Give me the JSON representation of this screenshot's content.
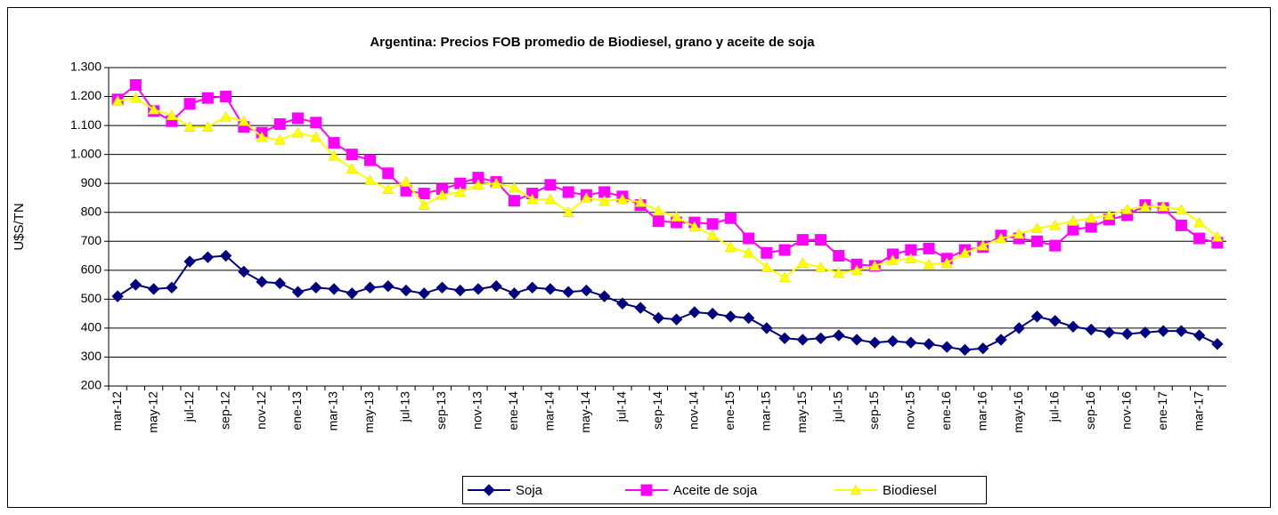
{
  "chart_data": {
    "type": "line",
    "title": "Argentina: Precios FOB  promedio de Biodiesel, grano y aceite de soja",
    "y_label": "U$S/TN",
    "categories": [
      "mar-12",
      null,
      "may-12",
      null,
      "jul-12",
      null,
      "sep-12",
      null,
      "nov-12",
      null,
      "ene-13",
      null,
      "mar-13",
      null,
      "may-13",
      null,
      "jul-13",
      null,
      "sep-13",
      null,
      "nov-13",
      null,
      "ene-14",
      null,
      "mar-14",
      null,
      "may-14",
      null,
      "jul-14",
      null,
      "sep-14",
      null,
      "nov-14",
      null,
      "ene-15",
      null,
      "mar-15",
      null,
      "may-15",
      null,
      "jul-15",
      null,
      "sep-15",
      null,
      "nov-15",
      null,
      "ene-16",
      null,
      "mar-16",
      null,
      "may-16",
      null,
      "jul-16",
      null,
      "sep-16",
      null,
      "nov-16",
      null,
      "ene-17",
      null,
      "mar-17",
      null
    ],
    "series": [
      {
        "name": "Soja",
        "color": "#000080",
        "marker": "diamond",
        "values": [
          510,
          550,
          535,
          540,
          630,
          645,
          650,
          595,
          560,
          555,
          525,
          540,
          535,
          520,
          540,
          545,
          530,
          520,
          540,
          530,
          535,
          545,
          520,
          540,
          535,
          525,
          530,
          510,
          485,
          470,
          435,
          430,
          455,
          450,
          440,
          435,
          400,
          365,
          360,
          365,
          375,
          360,
          350,
          355,
          350,
          345,
          335,
          325,
          330,
          360,
          400,
          440,
          425,
          405,
          395,
          385,
          380,
          385,
          390,
          390,
          375,
          345
        ]
      },
      {
        "name": "Aceite de soja",
        "color": "#ff00ff",
        "marker": "square",
        "values": [
          1190,
          1240,
          1150,
          1115,
          1175,
          1195,
          1200,
          1095,
          1075,
          1105,
          1125,
          1110,
          1040,
          1000,
          980,
          935,
          875,
          865,
          880,
          900,
          920,
          905,
          840,
          865,
          895,
          870,
          860,
          870,
          855,
          825,
          770,
          765,
          765,
          760,
          780,
          710,
          660,
          670,
          705,
          705,
          650,
          620,
          615,
          655,
          670,
          675,
          640,
          670,
          680,
          720,
          710,
          700,
          685,
          740,
          750,
          775,
          790,
          825,
          815,
          755,
          710,
          695
        ]
      },
      {
        "name": "Biodiesel",
        "color": "#ffff00",
        "marker": "triangle",
        "values": [
          1185,
          1195,
          1155,
          1135,
          1095,
          1095,
          1130,
          1115,
          1060,
          1050,
          1075,
          1060,
          995,
          950,
          910,
          880,
          905,
          825,
          860,
          870,
          895,
          900,
          885,
          845,
          845,
          800,
          850,
          840,
          845,
          835,
          805,
          785,
          750,
          720,
          680,
          660,
          610,
          575,
          625,
          610,
          590,
          600,
          615,
          635,
          640,
          620,
          625,
          660,
          685,
          710,
          725,
          745,
          755,
          770,
          780,
          790,
          810,
          820,
          820,
          810,
          765,
          715
        ]
      }
    ],
    "ylim": [
      200,
      1300
    ],
    "yticks": [
      200,
      300,
      400,
      500,
      600,
      700,
      800,
      900,
      {
        "value": 1000,
        "label": "1.000"
      },
      {
        "value": 1100,
        "label": "1.100"
      },
      {
        "value": 1200,
        "label": "1.200"
      },
      {
        "value": 1300,
        "label": "1.300"
      }
    ],
    "grid": true,
    "legend": "bottom"
  }
}
